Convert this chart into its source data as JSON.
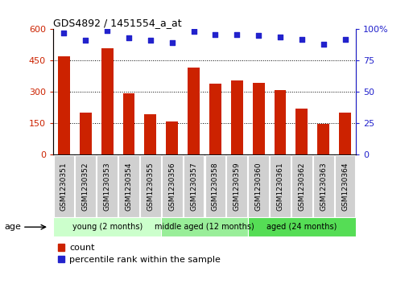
{
  "title": "GDS4892 / 1451554_a_at",
  "samples": [
    "GSM1230351",
    "GSM1230352",
    "GSM1230353",
    "GSM1230354",
    "GSM1230355",
    "GSM1230356",
    "GSM1230357",
    "GSM1230358",
    "GSM1230359",
    "GSM1230360",
    "GSM1230361",
    "GSM1230362",
    "GSM1230363",
    "GSM1230364"
  ],
  "counts": [
    470,
    200,
    510,
    295,
    195,
    160,
    415,
    340,
    355,
    345,
    310,
    220,
    148,
    200
  ],
  "percentile_ranks": [
    97,
    91,
    99,
    93,
    91,
    89,
    98,
    96,
    96,
    95,
    94,
    92,
    88,
    92
  ],
  "groups": [
    {
      "label": "young (2 months)",
      "start": 0,
      "end": 4,
      "color": "#ccffcc"
    },
    {
      "label": "middle aged (12 months)",
      "start": 5,
      "end": 8,
      "color": "#99ee99"
    },
    {
      "label": "aged (24 months)",
      "start": 9,
      "end": 13,
      "color": "#55dd55"
    }
  ],
  "bar_color": "#cc2200",
  "dot_color": "#2222cc",
  "ylim_left": [
    0,
    600
  ],
  "ylim_right": [
    0,
    100
  ],
  "yticks_left": [
    0,
    150,
    300,
    450,
    600
  ],
  "yticks_right": [
    0,
    25,
    50,
    75,
    100
  ],
  "left_tick_labels": [
    "0",
    "150",
    "300",
    "450",
    "600"
  ],
  "right_tick_labels": [
    "0",
    "25",
    "50",
    "75",
    "100%"
  ],
  "grid_values": [
    150,
    300,
    450
  ],
  "background_color": "#ffffff",
  "cell_bg": "#cccccc",
  "age_label": "age",
  "legend_count": "count",
  "legend_percentile": "percentile rank within the sample"
}
